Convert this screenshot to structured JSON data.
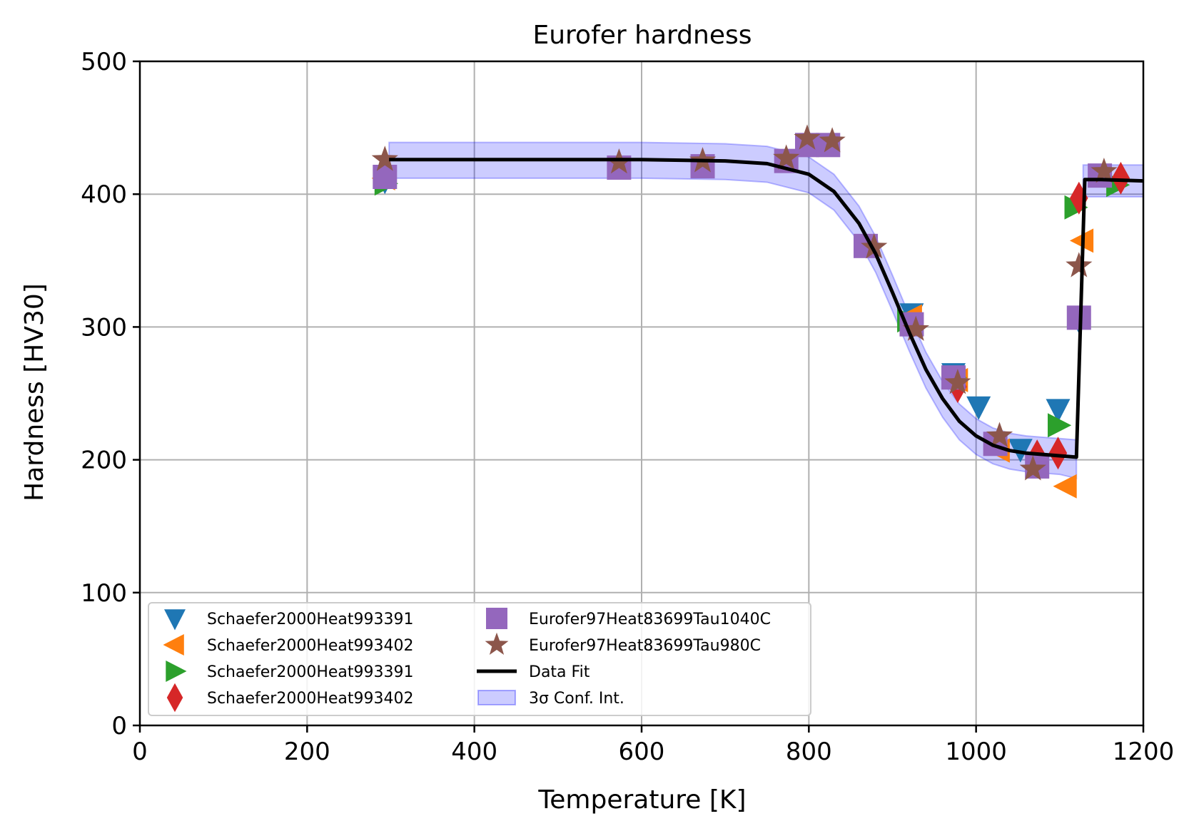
{
  "chart_data": {
    "type": "scatter",
    "title": "Eurofer hardness",
    "xlabel": "Temperature [K]",
    "ylabel": "Hardness [HV30]",
    "xlim": [
      0,
      1200
    ],
    "ylim": [
      0,
      500
    ],
    "xticks": [
      0,
      200,
      400,
      600,
      800,
      1000,
      1200
    ],
    "yticks": [
      0,
      100,
      200,
      300,
      400,
      500
    ],
    "xtick_labels": [
      "0",
      "200",
      "400",
      "600",
      "800",
      "1000",
      "1200"
    ],
    "ytick_labels": [
      "0",
      "100",
      "200",
      "300",
      "400",
      "500"
    ],
    "grid": true,
    "legend_position": "lower-left",
    "series": [
      {
        "name": "Schaefer2000Heat993391",
        "marker": "triangle-down",
        "color": "#1f77b4",
        "x": [
          293,
          923,
          973,
          1003,
          1053,
          1098,
          1123
        ],
        "y": [
          410,
          310,
          265,
          240,
          208,
          238,
          305
        ]
      },
      {
        "name": "Schaefer2000Heat993402",
        "marker": "triangle-left",
        "color": "#ff7f0e",
        "x": [
          293,
          923,
          978,
          1028,
          1108,
          1128
        ],
        "y": [
          412,
          308,
          260,
          207,
          180,
          365
        ]
      },
      {
        "name": "Schaefer2000Heat993391",
        "marker": "triangle-right",
        "color": "#2ca02c",
        "x": [
          293,
          918,
          973,
          1098,
          1118,
          1168
        ],
        "y": [
          408,
          305,
          262,
          226,
          390,
          407
        ]
      },
      {
        "name": "Schaefer2000Heat993402",
        "marker": "diamond",
        "color": "#d62728",
        "x": [
          978,
          1073,
          1098,
          1123,
          1173
        ],
        "y": [
          255,
          203,
          205,
          397,
          412
        ]
      },
      {
        "name": "Eurofer97Heat83699Tau1040C",
        "marker": "square",
        "color": "#9467bd",
        "x": [
          293,
          573,
          673,
          773,
          798,
          823,
          868,
          923,
          973,
          1023,
          1073,
          1123,
          1148
        ],
        "y": [
          413,
          420,
          421,
          425,
          437,
          437,
          361,
          302,
          262,
          212,
          195,
          307,
          414
        ]
      },
      {
        "name": "Eurofer97Heat83699Tau980C",
        "marker": "star",
        "color": "#8c564b",
        "x": [
          293,
          573,
          673,
          773,
          798,
          828,
          878,
          928,
          978,
          1028,
          1068,
          1123,
          1153
        ],
        "y": [
          426,
          424,
          425,
          427,
          442,
          440,
          360,
          298,
          258,
          218,
          193,
          346,
          417
        ]
      }
    ],
    "fit": {
      "name": "Data Fit",
      "color": "#000000",
      "x": [
        298,
        400,
        500,
        600,
        700,
        750,
        800,
        830,
        860,
        880,
        900,
        920,
        940,
        960,
        980,
        1000,
        1020,
        1040,
        1060,
        1080,
        1100,
        1120,
        1130,
        1150,
        1200
      ],
      "y": [
        426,
        426,
        426,
        426,
        425,
        423,
        415,
        402,
        378,
        355,
        326,
        296,
        268,
        246,
        229,
        218,
        211,
        207,
        205,
        204,
        203,
        202,
        411,
        411,
        410
      ]
    },
    "band": {
      "name": "3σ Conf. Int.",
      "color": "#0000ff",
      "x": [
        298,
        400,
        500,
        600,
        700,
        750,
        800,
        830,
        860,
        880,
        900,
        920,
        940,
        960,
        980,
        1000,
        1020,
        1040,
        1060,
        1080,
        1100,
        1120
      ],
      "upper": [
        439,
        439,
        439,
        439,
        438,
        436,
        428,
        415,
        391,
        368,
        339,
        309,
        281,
        259,
        242,
        231,
        224,
        220,
        218,
        217,
        216,
        215
      ],
      "lower": [
        412,
        412,
        412,
        412,
        411,
        409,
        401,
        388,
        364,
        341,
        312,
        282,
        254,
        232,
        215,
        204,
        197,
        193,
        191,
        190,
        189,
        186
      ],
      "upper_high": 422,
      "lower_high": 398,
      "high_range": [
        1128,
        1200
      ]
    }
  }
}
